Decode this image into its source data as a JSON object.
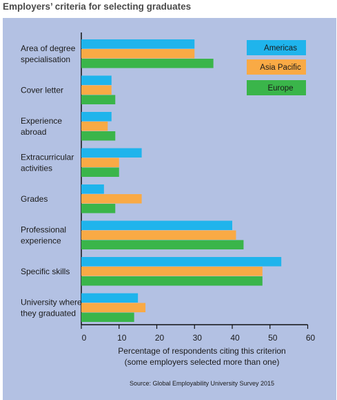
{
  "title": "Employers’ criteria for selecting graduates",
  "chart_data": {
    "type": "bar",
    "orientation": "horizontal",
    "categories": [
      [
        "Area of degree",
        "specialisation"
      ],
      [
        "Cover letter"
      ],
      [
        "Experience",
        "abroad"
      ],
      [
        "Extracurricular",
        "activities"
      ],
      [
        "Grades"
      ],
      [
        "Professional",
        "experience"
      ],
      [
        "Specific skills"
      ],
      [
        "University where",
        "they graduated"
      ]
    ],
    "series": [
      {
        "name": "Americas",
        "color": "#1fb4ec",
        "values": [
          30,
          8,
          8,
          16,
          6,
          40,
          53,
          15
        ]
      },
      {
        "name": "Asia Pacific",
        "color": "#f9aa45",
        "values": [
          30,
          8,
          7,
          10,
          16,
          41,
          48,
          17
        ]
      },
      {
        "name": "Europe",
        "color": "#3ab54a",
        "values": [
          35,
          9,
          9,
          10,
          9,
          43,
          48,
          14
        ]
      }
    ],
    "xlim": [
      0,
      60
    ],
    "xticks": [
      0,
      10,
      20,
      30,
      40,
      50,
      60
    ],
    "xlabel": [
      "Percentage of respondents citing this criterion",
      "(some employers selected more than one)"
    ],
    "legend_position": "top-right",
    "source": "Source: Global Employability University Survey 2015"
  }
}
